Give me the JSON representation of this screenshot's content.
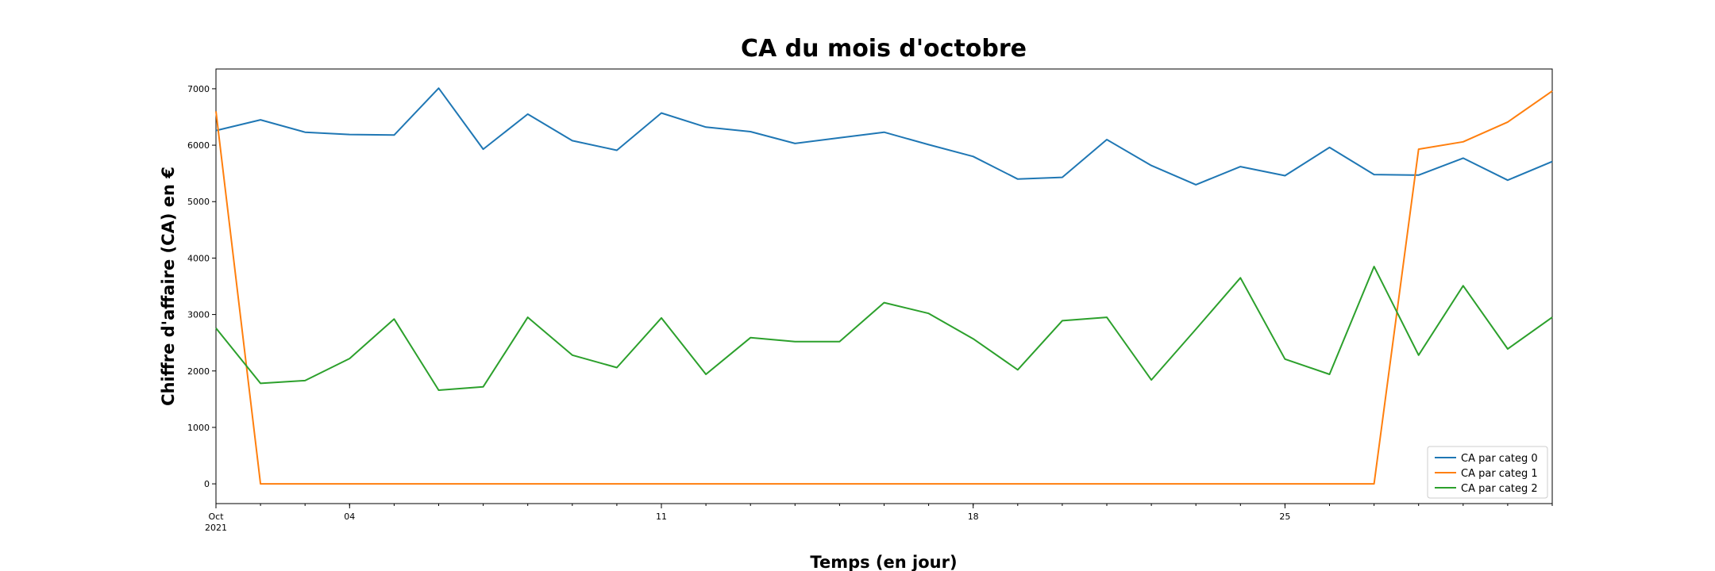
{
  "chart_data": {
    "type": "line",
    "title": "CA du mois d'octobre",
    "xlabel": "Temps (en jour)",
    "ylabel": "Chiffre d'affaire (CA) en €",
    "x": [
      "2021-10-01",
      "2021-10-02",
      "2021-10-03",
      "2021-10-04",
      "2021-10-05",
      "2021-10-06",
      "2021-10-07",
      "2021-10-08",
      "2021-10-09",
      "2021-10-10",
      "2021-10-11",
      "2021-10-12",
      "2021-10-13",
      "2021-10-14",
      "2021-10-15",
      "2021-10-16",
      "2021-10-17",
      "2021-10-18",
      "2021-10-19",
      "2021-10-20",
      "2021-10-21",
      "2021-10-22",
      "2021-10-23",
      "2021-10-24",
      "2021-10-25",
      "2021-10-26",
      "2021-10-27",
      "2021-10-28",
      "2021-10-29",
      "2021-10-30",
      "2021-10-31"
    ],
    "xlim": [
      "2021-10-01",
      "2021-10-31"
    ],
    "x_ticks": [
      {
        "date": "2021-10-01",
        "label": "Oct",
        "label2": "2021"
      },
      {
        "date": "2021-10-04",
        "label": "04"
      },
      {
        "date": "2021-10-11",
        "label": "11"
      },
      {
        "date": "2021-10-18",
        "label": "18"
      },
      {
        "date": "2021-10-25",
        "label": "25"
      }
    ],
    "ylim": [
      -350,
      7350
    ],
    "y_ticks": [
      0,
      1000,
      2000,
      3000,
      4000,
      5000,
      6000,
      7000
    ],
    "grid": false,
    "legend": "lower-right",
    "series": [
      {
        "name": "CA par categ 0",
        "color": "#1f77b4",
        "values": [
          6260,
          6450,
          6230,
          6190,
          6180,
          7010,
          5930,
          6550,
          6080,
          5910,
          6570,
          6320,
          6240,
          6030,
          6130,
          6230,
          6010,
          5800,
          5400,
          5430,
          6100,
          5640,
          5300,
          5620,
          5460,
          5960,
          5480,
          5470,
          5770,
          5380,
          5710
        ]
      },
      {
        "name": "CA par categ 1",
        "color": "#ff7f0e",
        "values": [
          6600,
          0,
          0,
          0,
          0,
          0,
          0,
          0,
          0,
          0,
          0,
          0,
          0,
          0,
          0,
          0,
          0,
          0,
          0,
          0,
          0,
          0,
          0,
          0,
          0,
          0,
          0,
          5930,
          6060,
          6410,
          6960
        ]
      },
      {
        "name": "CA par categ 2",
        "color": "#2ca02c",
        "values": [
          2760,
          1780,
          1830,
          2220,
          2920,
          1660,
          1720,
          2950,
          2280,
          2060,
          2940,
          1940,
          2590,
          2520,
          2520,
          3210,
          3020,
          2570,
          2020,
          2890,
          2950,
          1840,
          2740,
          3650,
          2210,
          1940,
          3850,
          2280,
          3510,
          2390,
          2950
        ]
      }
    ]
  }
}
